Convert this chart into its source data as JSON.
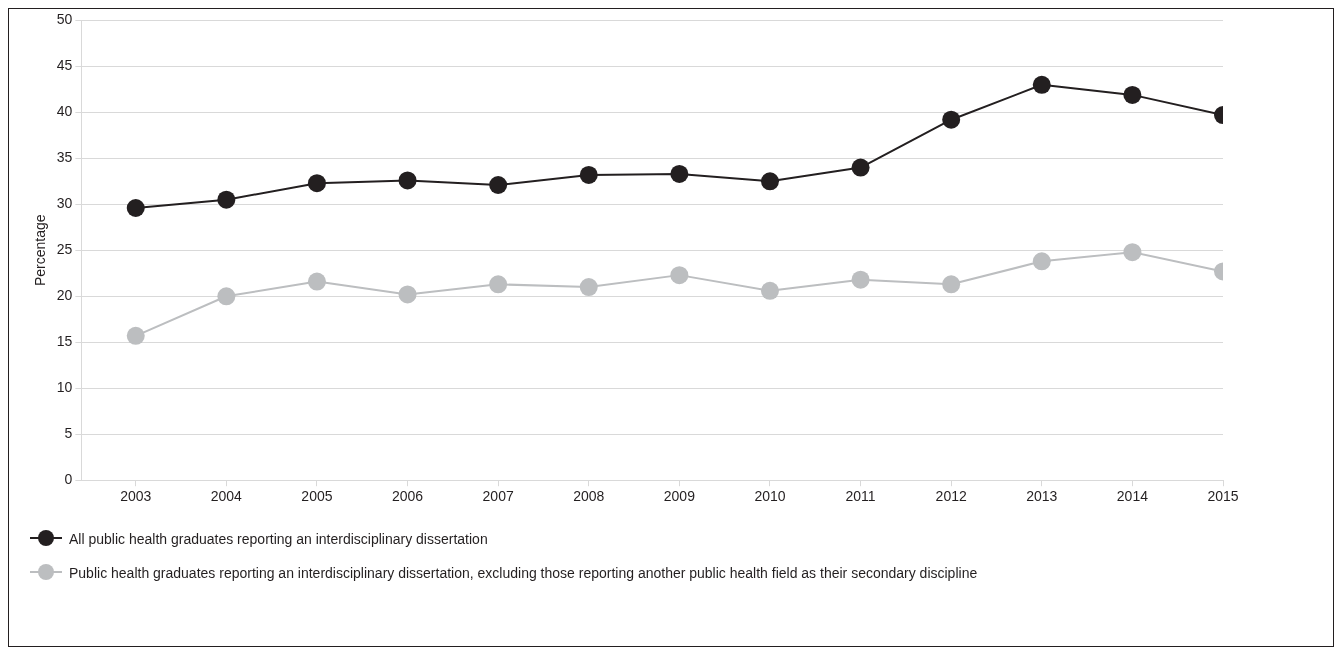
{
  "chart_data": {
    "type": "line",
    "ylabel": "Percentage",
    "x": [
      2003,
      2004,
      2005,
      2006,
      2007,
      2008,
      2009,
      2010,
      2011,
      2012,
      2013,
      2014,
      2015
    ],
    "xlim": [
      2002.4,
      2015
    ],
    "xticks": [
      2003,
      2004,
      2005,
      2006,
      2007,
      2008,
      2009,
      2010,
      2011,
      2012,
      2013,
      2014,
      2015
    ],
    "ylim": [
      0,
      50
    ],
    "yticks": [
      0,
      5,
      10,
      15,
      20,
      25,
      30,
      35,
      40,
      45,
      50
    ],
    "grid": "y",
    "legend": "bottom",
    "marker": "circle",
    "series": [
      {
        "name": "All public health graduates reporting an interdisciplinary dissertation",
        "color": "#231f20",
        "values": [
          29.6,
          30.5,
          32.3,
          32.6,
          32.1,
          33.2,
          33.3,
          32.5,
          34.0,
          39.2,
          43.0,
          41.9,
          39.7
        ]
      },
      {
        "name": "Public health graduates reporting an interdisciplinary dissertation, excluding those reporting another public health field as their secondary discipline",
        "color": "#bcbec0",
        "values": [
          15.7,
          20.0,
          21.6,
          20.2,
          21.3,
          21.0,
          22.3,
          20.6,
          21.8,
          21.3,
          23.8,
          24.8,
          22.7
        ]
      }
    ]
  }
}
